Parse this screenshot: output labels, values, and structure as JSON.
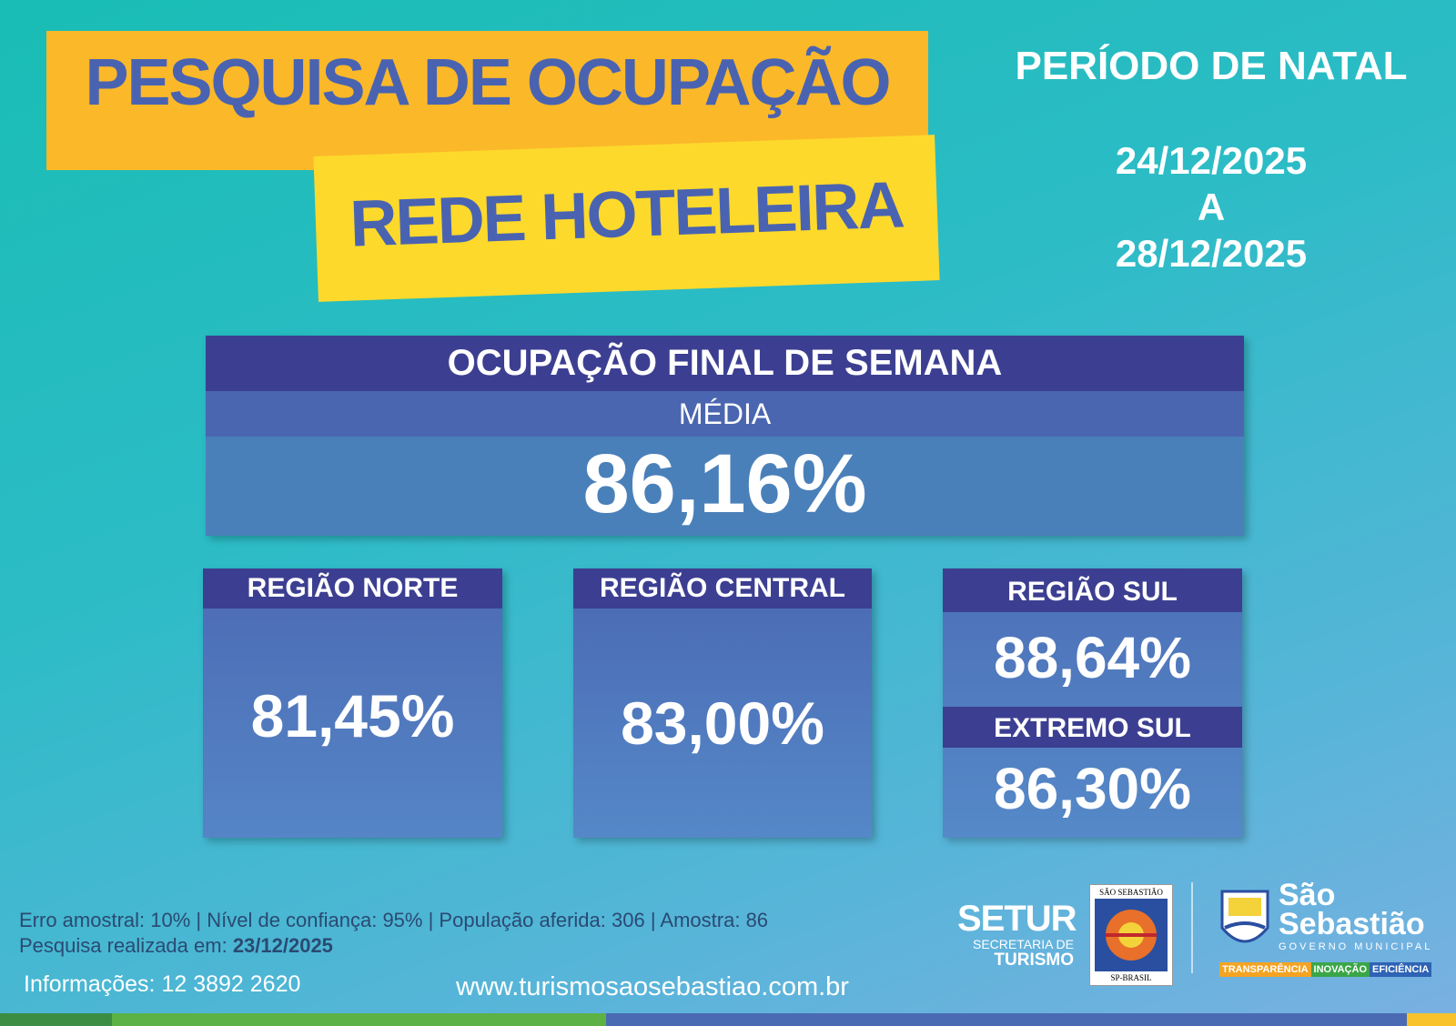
{
  "header": {
    "title_line1": "PESQUISA DE OCUPAÇÃO",
    "title_line2": "REDE HOTELEIRA",
    "period": "PERÍODO DE NATAL",
    "date_start": "24/12/2025",
    "date_separator": "A",
    "date_end": "28/12/2025"
  },
  "summary": {
    "title": "OCUPAÇÃO FINAL DE SEMANA",
    "label": "MÉDIA",
    "value": "86,16%"
  },
  "regions": [
    {
      "name": "REGIÃO NORTE",
      "value": "81,45%"
    },
    {
      "name": "REGIÃO CENTRAL",
      "value": "83,00%"
    },
    {
      "name": "REGIÃO SUL",
      "value": "88,64%"
    },
    {
      "name": "EXTREMO SUL",
      "value": "86,30%"
    }
  ],
  "footer": {
    "methodology": "Erro amostral: 10% | Nível de confiança: 95% | População aferida: 306 | Amostra: 86",
    "survey_label": "Pesquisa realizada em:",
    "survey_date": "23/12/2025",
    "info": "Informações: 12 3892 2620",
    "website": "www.turismosaosebastiao.com.br"
  },
  "logos": {
    "setur": "SETUR",
    "setur_sub1": "SECRETARIA DE",
    "setur_sub2": "TURISMO",
    "seal_top": "SÃO SEBASTIÃO",
    "seal_bottom": "SP-BRASIL",
    "city1": "São",
    "city2": "Sebastião",
    "city_sub": "GOVERNO MUNICIPAL",
    "tag1": "TRANSPARÊNCIA",
    "tag2": "INOVAÇÃO",
    "tag3": "EFICIÊNCIA"
  }
}
